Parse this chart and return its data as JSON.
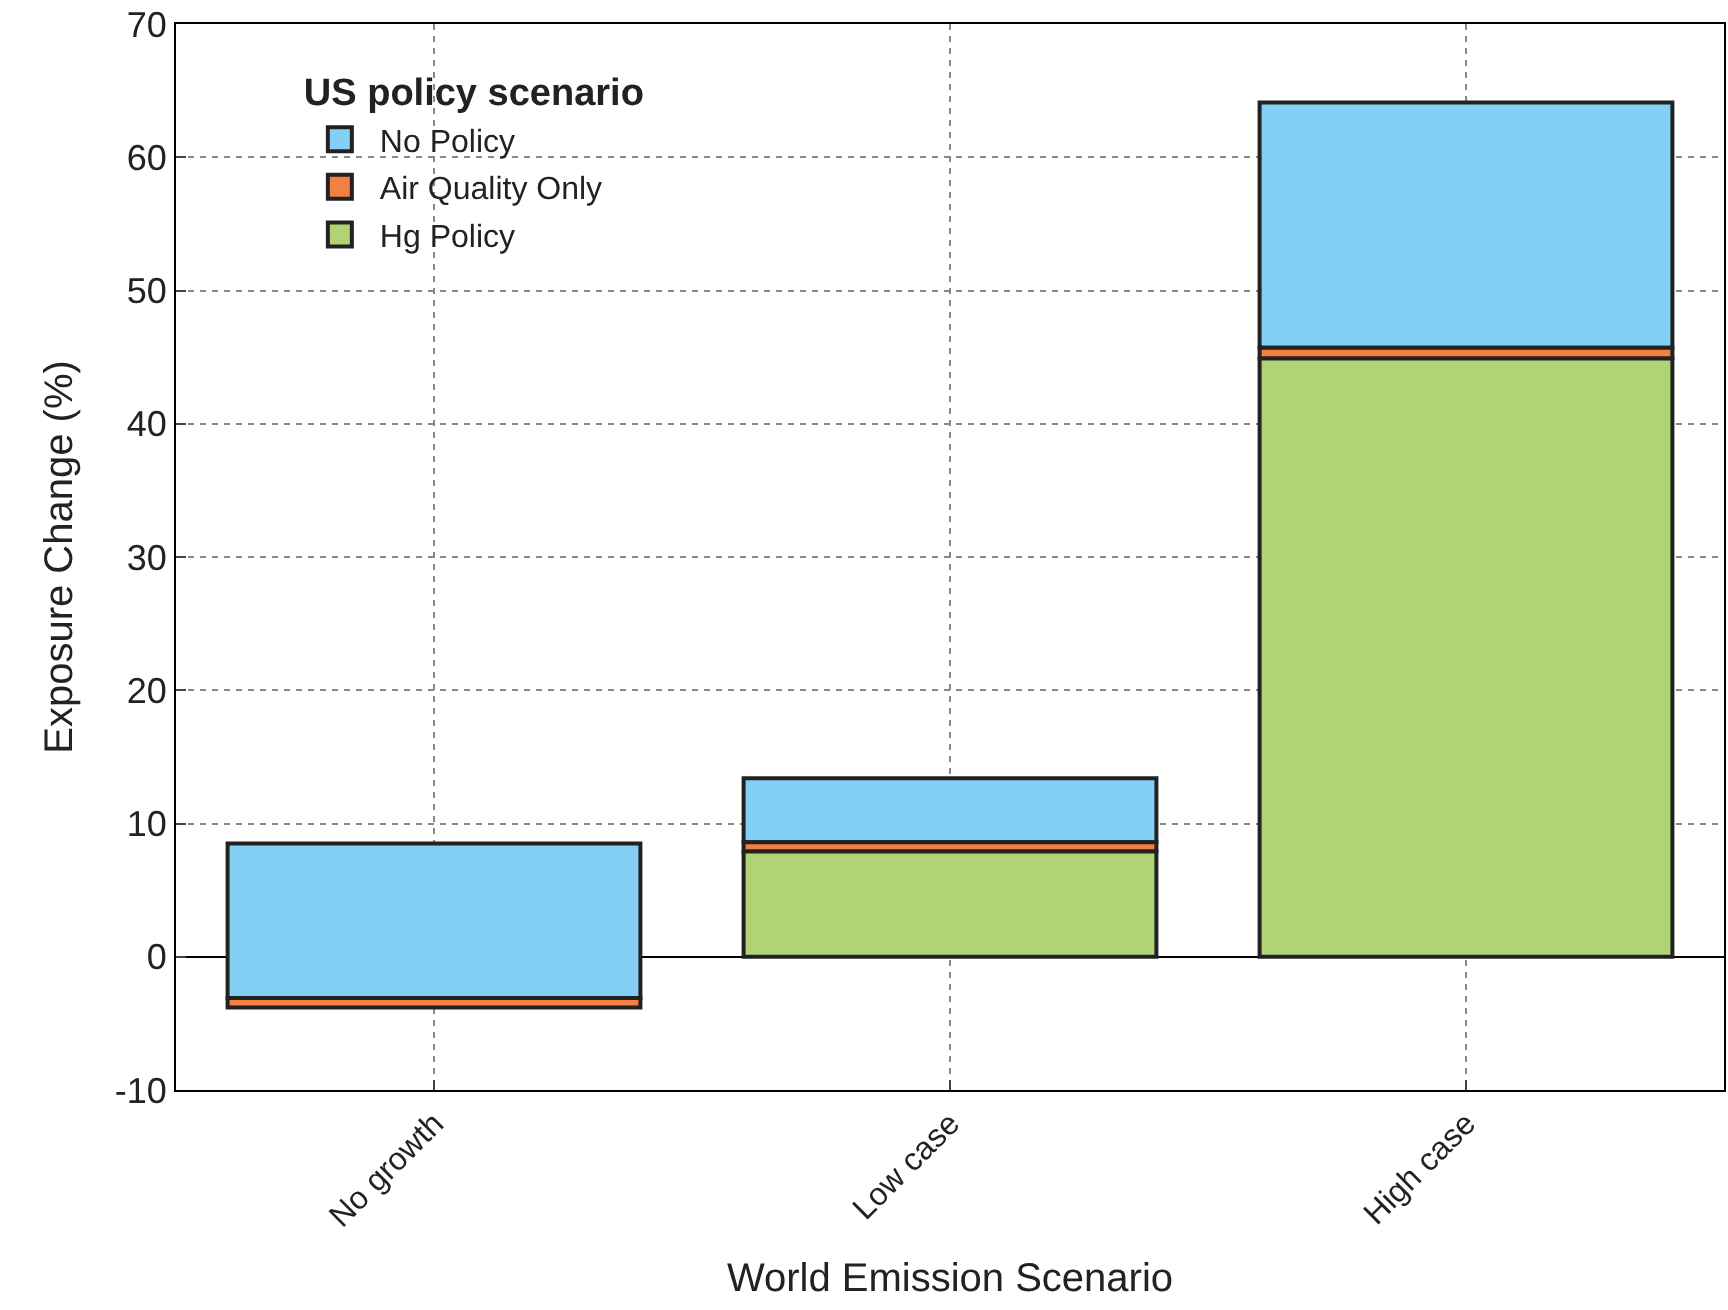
{
  "chart_data": {
    "type": "bar",
    "xlabel": "World Emission Scenario",
    "ylabel": "Exposure Change (%)",
    "legend_title": "US policy scenario",
    "categories": [
      "No growth",
      "Low case",
      "High case"
    ],
    "series": [
      {
        "name": "No Policy",
        "color": "#84d0f5",
        "base": [
          -3.1,
          8.6,
          45.7
        ],
        "values": [
          11.6,
          4.8,
          18.4
        ]
      },
      {
        "name": "Air Quality Only",
        "color": "#f47f43",
        "base": [
          -3.8,
          7.9,
          44.9
        ],
        "values": [
          0.7,
          0.7,
          0.8
        ]
      },
      {
        "name": "Hg Policy",
        "color": "#b0d475",
        "base": [
          null,
          0,
          0
        ],
        "values": [
          null,
          7.9,
          44.9
        ]
      }
    ],
    "ylim": [
      -10,
      70
    ],
    "yticks": [
      -10,
      0,
      10,
      20,
      30,
      40,
      50,
      60,
      70
    ],
    "grid": true,
    "legend": "top left"
  }
}
